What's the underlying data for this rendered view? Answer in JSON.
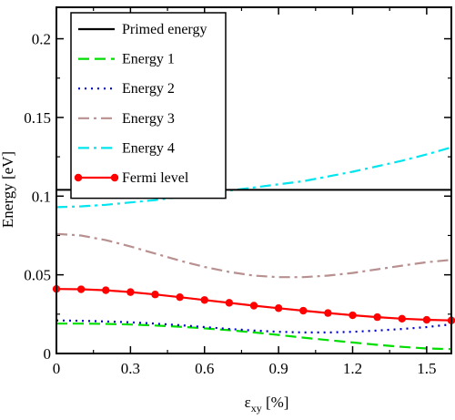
{
  "chart_data": {
    "type": "line",
    "xlabel": "ε",
    "xlabel_sub": "xy",
    "xlabel_unit": " [%]",
    "ylabel": "Energy [eV]",
    "xlim": [
      0,
      1.6
    ],
    "ylim": [
      0,
      0.22
    ],
    "xticks": [
      0,
      0.3,
      0.6,
      0.9,
      1.2,
      1.5
    ],
    "xtick_labels": [
      "0",
      "0.3",
      "0.6",
      "0.9",
      "1.2",
      "1.5"
    ],
    "yticks": [
      0,
      0.05,
      0.1,
      0.15,
      0.2
    ],
    "ytick_labels": [
      "0",
      "0.05",
      "0.1",
      "0.15",
      "0.2"
    ],
    "grid": false,
    "legend_position": "top-left",
    "primed_energy_level": 0.104,
    "x": [
      0,
      0.1,
      0.2,
      0.3,
      0.4,
      0.5,
      0.6,
      0.7,
      0.8,
      0.9,
      1.0,
      1.1,
      1.2,
      1.3,
      1.4,
      1.5,
      1.6
    ],
    "series": [
      {
        "name": "Primed energy",
        "color": "#000000",
        "style": "solid",
        "values": [
          0.104,
          0.104,
          0.104,
          0.104,
          0.104,
          0.104,
          0.104,
          0.104,
          0.104,
          0.104,
          0.104,
          0.104,
          0.104,
          0.104,
          0.104,
          0.104,
          0.104
        ]
      },
      {
        "name": "Energy 1",
        "color": "#00dd00",
        "style": "dashed",
        "values": [
          0.019,
          0.019,
          0.0188,
          0.0184,
          0.0178,
          0.017,
          0.016,
          0.0148,
          0.0134,
          0.0118,
          0.0101,
          0.0085,
          0.007,
          0.0055,
          0.0042,
          0.0032,
          0.0028
        ]
      },
      {
        "name": "Energy 2",
        "color": "#0000cc",
        "style": "dotted",
        "values": [
          0.021,
          0.0208,
          0.0204,
          0.0198,
          0.019,
          0.018,
          0.0168,
          0.0156,
          0.0146,
          0.0138,
          0.0134,
          0.0134,
          0.0138,
          0.0146,
          0.0156,
          0.0168,
          0.0185
        ]
      },
      {
        "name": "Energy 3",
        "color": "#b89090",
        "style": "dashdot",
        "values": [
          0.076,
          0.075,
          0.072,
          0.068,
          0.0635,
          0.059,
          0.055,
          0.0518,
          0.0495,
          0.0485,
          0.0485,
          0.0495,
          0.0512,
          0.0535,
          0.0558,
          0.058,
          0.0595
        ]
      },
      {
        "name": "Energy 4",
        "color": "#00e5ee",
        "style": "dashdot",
        "values": [
          0.093,
          0.0935,
          0.0945,
          0.096,
          0.0975,
          0.0995,
          0.1015,
          0.1035,
          0.1055,
          0.1075,
          0.1095,
          0.1125,
          0.1155,
          0.119,
          0.1225,
          0.1265,
          0.131
        ]
      },
      {
        "name": "Fermi level",
        "color": "#ff0000",
        "style": "solid",
        "marker": "circle",
        "values": [
          0.041,
          0.0408,
          0.0402,
          0.039,
          0.0375,
          0.0358,
          0.034,
          0.0322,
          0.0304,
          0.0288,
          0.0272,
          0.0257,
          0.0243,
          0.0231,
          0.0221,
          0.0214,
          0.021
        ]
      }
    ]
  }
}
